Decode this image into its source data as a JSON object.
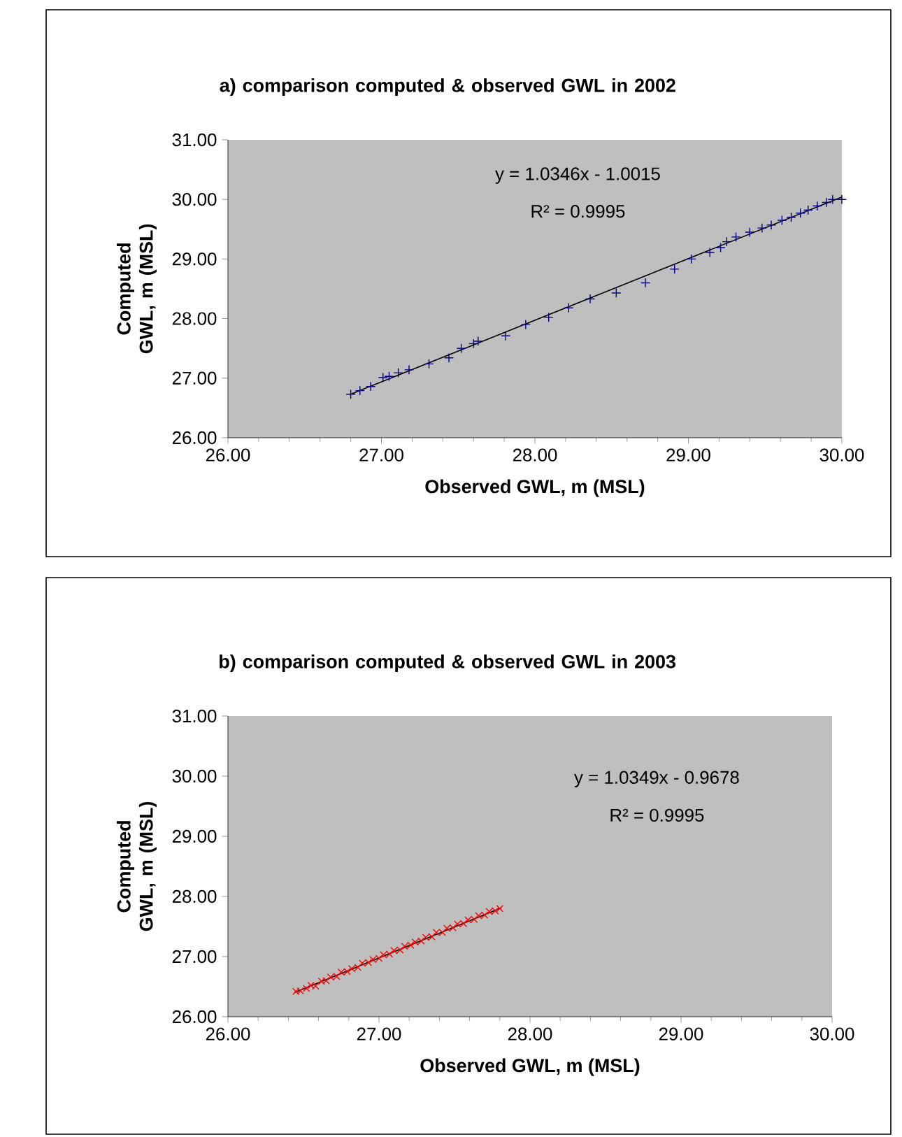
{
  "chart_data": [
    {
      "type": "scatter",
      "title": "a) comparison computed & observed GWL in 2002",
      "xlabel": "Observed GWL, m (MSL)",
      "ylabel": "Computed GWL, m (MSL)",
      "xlim": [
        26,
        30
      ],
      "ylim": [
        26,
        31
      ],
      "xticks": [
        {
          "value": 26,
          "label": "26.00"
        },
        {
          "value": 27,
          "label": "27.00"
        },
        {
          "value": 28,
          "label": "28.00"
        },
        {
          "value": 29,
          "label": "29.00"
        },
        {
          "value": 30,
          "label": "30.00"
        }
      ],
      "yticks": [
        {
          "value": 26,
          "label": "26.00"
        },
        {
          "value": 27,
          "label": "27.00"
        },
        {
          "value": 28,
          "label": "28.00"
        },
        {
          "value": 29,
          "label": "29.00"
        },
        {
          "value": 30,
          "label": "30.00"
        },
        {
          "value": 31,
          "label": "31.00"
        }
      ],
      "annotations": [
        "y = 1.0346x - 1.0015",
        "R² = 0.9995"
      ],
      "series": [
        {
          "type": "scatter",
          "color": "#000080",
          "marker": "plus",
          "x": [
            26.8,
            26.86,
            26.93,
            27.01,
            27.05,
            27.11,
            27.18,
            27.31,
            27.44,
            27.52,
            27.6,
            27.63,
            27.81,
            27.94,
            28.09,
            28.22,
            28.36,
            28.53,
            28.72,
            28.91,
            29.02,
            29.14,
            29.21,
            29.25,
            29.31,
            29.4,
            29.48,
            29.54,
            29.61,
            29.67,
            29.73,
            29.78,
            29.84,
            29.9,
            29.94,
            30.0
          ],
          "values": [
            26.73,
            26.79,
            26.86,
            27.01,
            27.03,
            27.09,
            27.14,
            27.24,
            27.34,
            27.5,
            27.58,
            27.62,
            27.71,
            27.9,
            28.02,
            28.18,
            28.33,
            28.43,
            28.6,
            28.83,
            29.0,
            29.11,
            29.19,
            29.29,
            29.37,
            29.45,
            29.52,
            29.57,
            29.65,
            29.7,
            29.77,
            29.82,
            29.89,
            29.95,
            30.0,
            30.0
          ]
        },
        {
          "type": "line",
          "color": "#000000",
          "x": [
            26.8,
            30.0
          ],
          "values": [
            26.73,
            30.04
          ]
        }
      ]
    },
    {
      "type": "scatter",
      "title": "b) comparison computed & observed GWL in 2003",
      "xlabel": "Observed GWL, m (MSL)",
      "ylabel": "Computed GWL, m (MSL)",
      "xlim": [
        26,
        30
      ],
      "ylim": [
        26,
        31
      ],
      "xticks": [
        {
          "value": 26,
          "label": "26.00"
        },
        {
          "value": 27,
          "label": "27.00"
        },
        {
          "value": 28,
          "label": "28.00"
        },
        {
          "value": 29,
          "label": "29.00"
        },
        {
          "value": 30,
          "label": "30.00"
        }
      ],
      "yticks": [
        {
          "value": 26,
          "label": "26.00"
        },
        {
          "value": 27,
          "label": "27.00"
        },
        {
          "value": 28,
          "label": "28.00"
        },
        {
          "value": 29,
          "label": "29.00"
        },
        {
          "value": 30,
          "label": "30.00"
        },
        {
          "value": 31,
          "label": "31.00"
        }
      ],
      "annotations": [
        "y = 1.0349x - 0.9678",
        "R² = 0.9995"
      ],
      "series": [
        {
          "type": "scatter",
          "color": "#ff0000",
          "marker": "cross",
          "x": [
            26.45,
            26.48,
            26.52,
            26.55,
            26.58,
            26.62,
            26.65,
            26.68,
            26.72,
            26.75,
            26.79,
            26.82,
            26.86,
            26.89,
            26.93,
            26.96,
            27.0,
            27.03,
            27.07,
            27.1,
            27.14,
            27.17,
            27.21,
            27.24,
            27.28,
            27.31,
            27.35,
            27.38,
            27.42,
            27.45,
            27.49,
            27.52,
            27.56,
            27.59,
            27.63,
            27.66,
            27.7,
            27.73,
            27.77,
            27.8
          ],
          "values": [
            26.42,
            26.43,
            26.47,
            26.52,
            26.51,
            26.59,
            26.6,
            26.66,
            26.67,
            26.74,
            26.75,
            26.8,
            26.82,
            26.89,
            26.9,
            26.95,
            26.97,
            27.03,
            27.04,
            27.1,
            27.11,
            27.17,
            27.19,
            27.24,
            27.26,
            27.32,
            27.33,
            27.4,
            27.4,
            27.47,
            27.48,
            27.54,
            27.55,
            27.61,
            27.62,
            27.68,
            27.69,
            27.75,
            27.76,
            27.8
          ]
        },
        {
          "type": "line",
          "color": "#000000",
          "x": [
            26.44,
            27.81
          ],
          "values": [
            26.4,
            27.81
          ]
        }
      ]
    }
  ]
}
